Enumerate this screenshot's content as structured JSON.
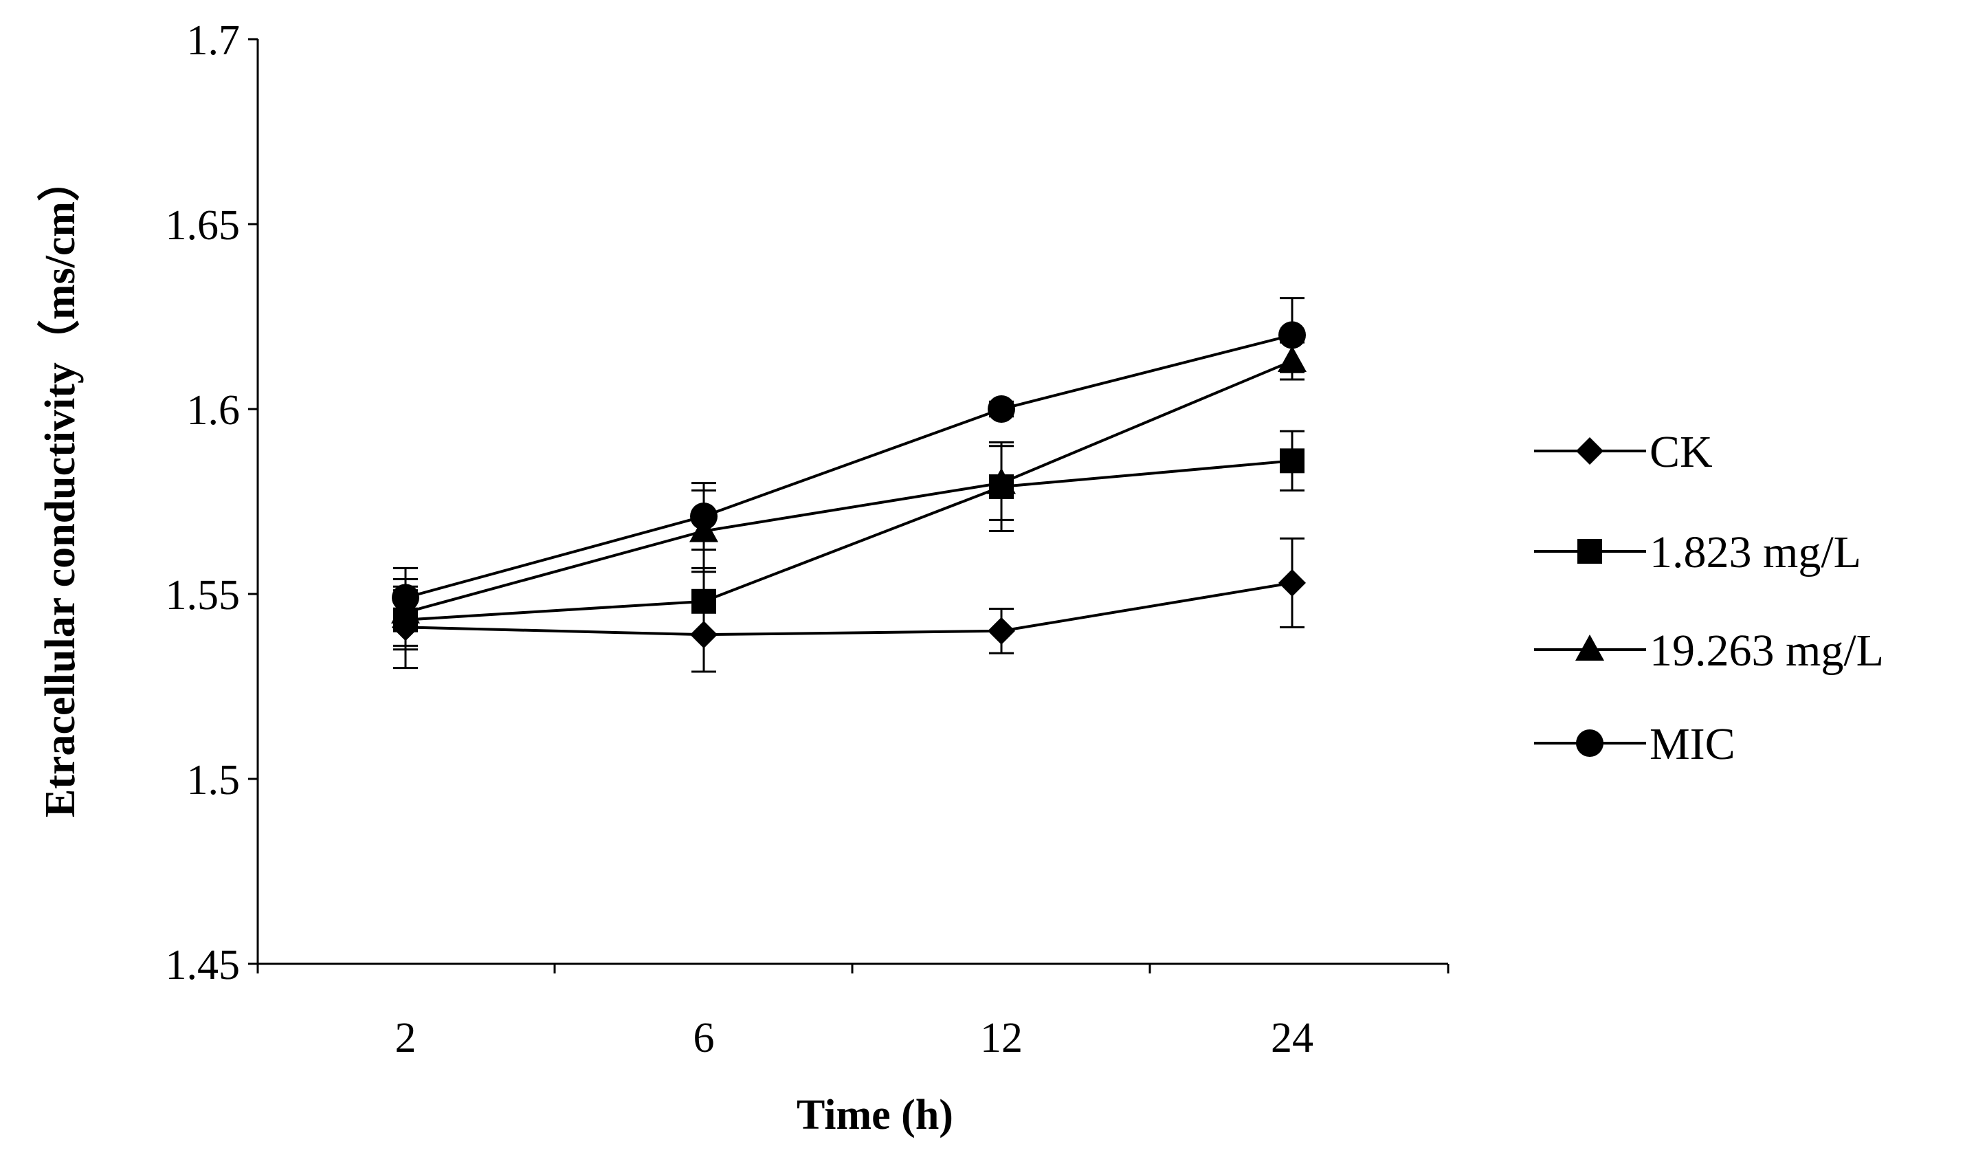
{
  "chart_data": {
    "type": "line",
    "title": "",
    "xlabel": "Time (h)",
    "ylabel": "Etracellular conductivity（ms/cm）",
    "categories": [
      "2",
      "6",
      "12",
      "24"
    ],
    "ylim": [
      1.45,
      1.7
    ],
    "yticks": [
      "1.45",
      "1.5",
      "1.55",
      "1.6",
      "1.65",
      "1.7"
    ],
    "grid": false,
    "legend_position": "right",
    "series": [
      {
        "name": "CK",
        "marker": "diamond",
        "values": [
          1.541,
          1.539,
          1.54,
          1.553
        ],
        "errors": [
          0.011,
          0.01,
          0.006,
          0.012
        ]
      },
      {
        "name": "1.823 mg/L",
        "marker": "square",
        "values": [
          1.543,
          1.548,
          1.579,
          1.586
        ],
        "errors": [
          0.008,
          0.009,
          0.012,
          0.008
        ]
      },
      {
        "name": "19.263 mg/L",
        "marker": "triangle",
        "values": [
          1.545,
          1.567,
          1.58,
          1.613
        ],
        "errors": [
          0.009,
          0.011,
          0.01,
          0.005
        ]
      },
      {
        "name": "MIC",
        "marker": "circle",
        "values": [
          1.549,
          1.571,
          1.6,
          1.62
        ],
        "errors": [
          0.008,
          0.009,
          0.002,
          0.01
        ]
      }
    ],
    "colors": {
      "line": "#000000",
      "background": "#ffffff"
    }
  }
}
